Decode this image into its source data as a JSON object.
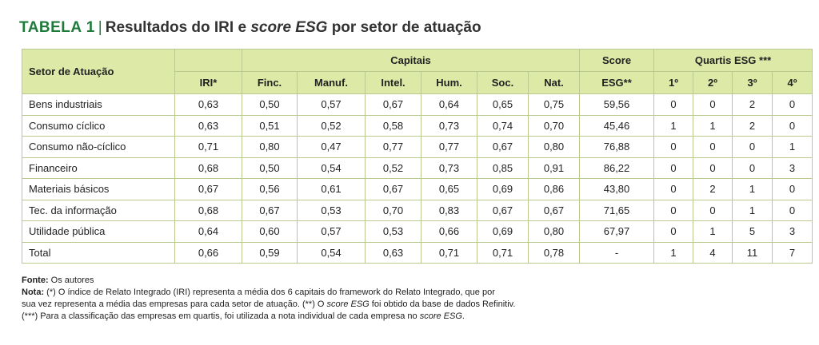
{
  "title": {
    "label": "TABELA 1",
    "separator": "|",
    "text_prefix": "Resultados do IRI e ",
    "text_italic": "score ESG",
    "text_suffix": " por setor de atuação"
  },
  "table": {
    "header_top": {
      "sector": "Setor de Atuação",
      "capitais": "Capitais",
      "score": "Score",
      "quartis": "Quartis ESG ***"
    },
    "header_sub": {
      "iri": "IRI*",
      "fin": "Finc.",
      "manuf": "Manuf.",
      "intel": "Intel.",
      "hum": "Hum.",
      "soc": "Soc.",
      "nat": "Nat.",
      "esg": "ESG**",
      "q1": "1º",
      "q2": "2º",
      "q3": "3º",
      "q4": "4º"
    },
    "rows": [
      [
        "Bens industriais",
        "0,63",
        "0,50",
        "0,57",
        "0,67",
        "0,64",
        "0,65",
        "0,75",
        "59,56",
        "0",
        "0",
        "2",
        "0"
      ],
      [
        "Consumo cíclico",
        "0,63",
        "0,51",
        "0,52",
        "0,58",
        "0,73",
        "0,74",
        "0,70",
        "45,46",
        "1",
        "1",
        "2",
        "0"
      ],
      [
        "Consumo não-cíclico",
        "0,71",
        "0,80",
        "0,47",
        "0,77",
        "0,77",
        "0,67",
        "0,80",
        "76,88",
        "0",
        "0",
        "0",
        "1"
      ],
      [
        "Financeiro",
        "0,68",
        "0,50",
        "0,54",
        "0,52",
        "0,73",
        "0,85",
        "0,91",
        "86,22",
        "0",
        "0",
        "0",
        "3"
      ],
      [
        "Materiais básicos",
        "0,67",
        "0,56",
        "0,61",
        "0,67",
        "0,65",
        "0,69",
        "0,86",
        "43,80",
        "0",
        "2",
        "1",
        "0"
      ],
      [
        "Tec. da informação",
        "0,68",
        "0,67",
        "0,53",
        "0,70",
        "0,83",
        "0,67",
        "0,67",
        "71,65",
        "0",
        "0",
        "1",
        "0"
      ],
      [
        "Utilidade pública",
        "0,64",
        "0,60",
        "0,57",
        "0,53",
        "0,66",
        "0,69",
        "0,80",
        "67,97",
        "0",
        "1",
        "5",
        "3"
      ],
      [
        "Total",
        "0,66",
        "0,59",
        "0,54",
        "0,63",
        "0,71",
        "0,71",
        "0,78",
        "-",
        "1",
        "4",
        "11",
        "7"
      ]
    ]
  },
  "notes": {
    "fonte_label": "Fonte:",
    "fonte_text": " Os autores",
    "nota_label": "Nota:",
    "nota_line1": " (*) O índice de Relato Integrado (IRI) representa a média dos 6 capitais do framework do Relato Integrado, que por",
    "nota_line2_prefix": "sua vez representa a média das empresas para cada setor de atuação. (**) O ",
    "nota_line2_italic": "score ESG",
    "nota_line2_suffix": " foi obtido da base de dados Refinitiv.",
    "nota_line3_prefix": "(***) Para a classificação das empresas em quartis, foi utilizada a nota individual de cada empresa no ",
    "nota_line3_italic": "score ESG",
    "nota_line3_suffix": "."
  }
}
